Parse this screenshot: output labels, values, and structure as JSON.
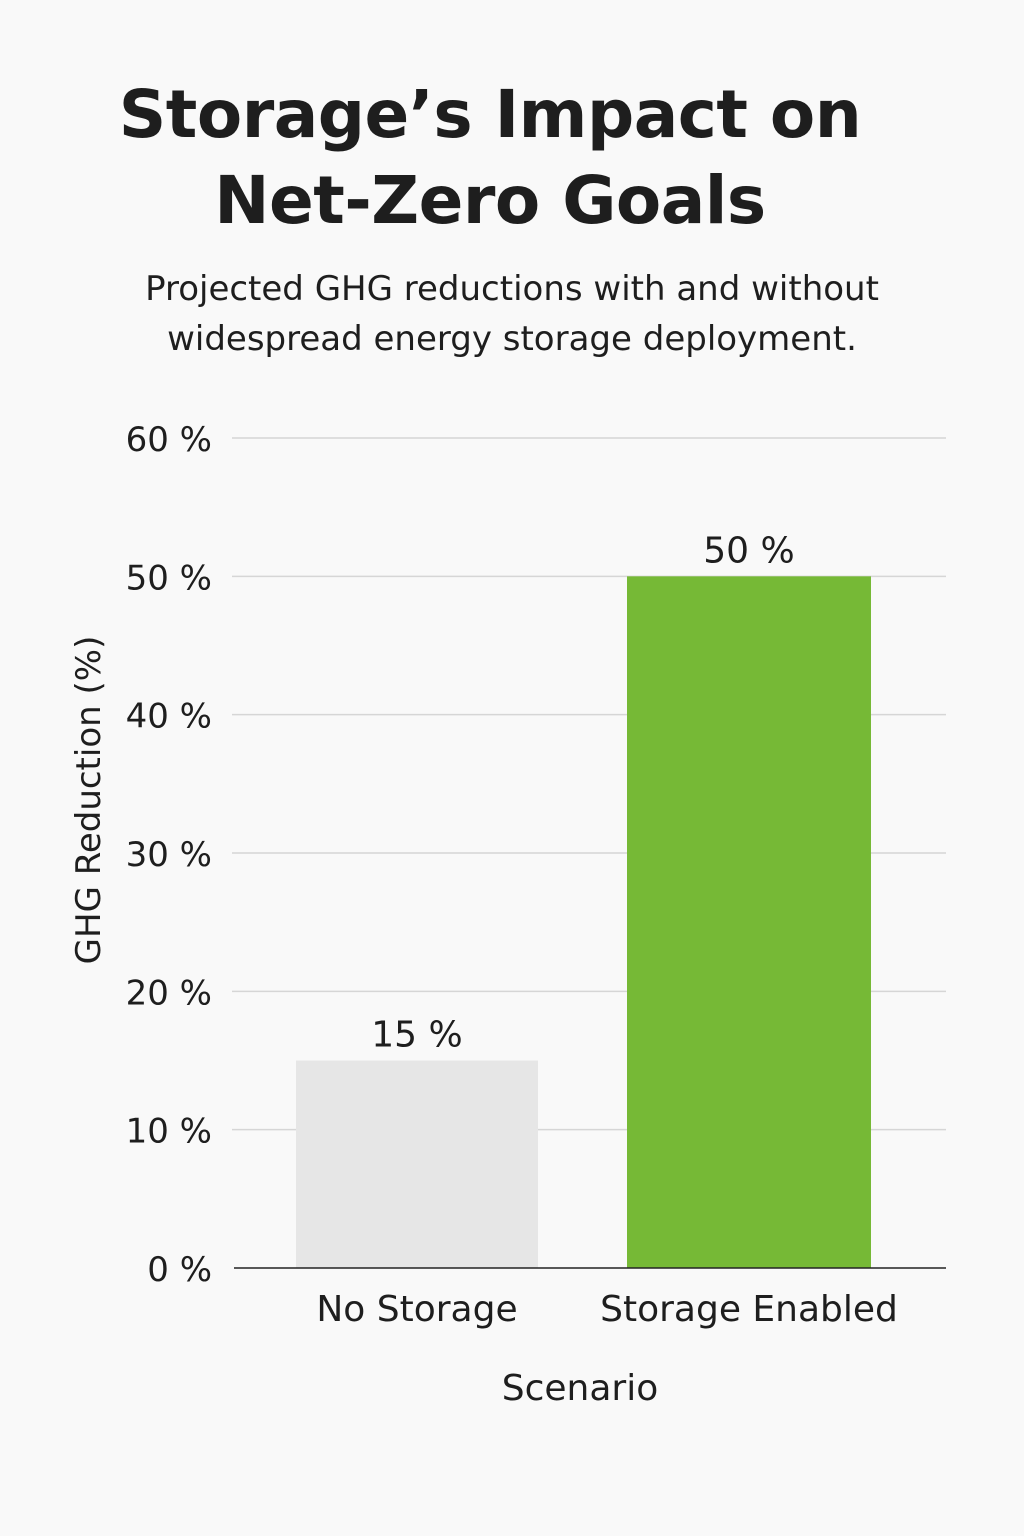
{
  "header": {
    "title_line1": "Storage’s Impact on",
    "title_line2": "Net-Zero Goals",
    "subtitle_line1": "Projected GHG reductions with and without",
    "subtitle_line2": "widespread energy storage deployment."
  },
  "chart_data": {
    "type": "bar",
    "categories": [
      "No Storage",
      "Storage Enabled"
    ],
    "values": [
      15,
      50
    ],
    "data_labels": [
      "15 %",
      "50 %"
    ],
    "xlabel": "Scenario",
    "ylabel": "GHG Reduction (%)",
    "ylim": [
      0,
      60
    ],
    "yticks": [
      0,
      10,
      20,
      30,
      40,
      50,
      60
    ],
    "ytick_labels": [
      "0 %",
      "10 %",
      "20 %",
      "30 %",
      "40 %",
      "50 %",
      "60 %"
    ],
    "grid": true,
    "legend": "none",
    "colors": [
      "#e6e6e6",
      "#76b936"
    ],
    "gridline_color": "#d6d6d6",
    "axis_color": "#222222"
  }
}
